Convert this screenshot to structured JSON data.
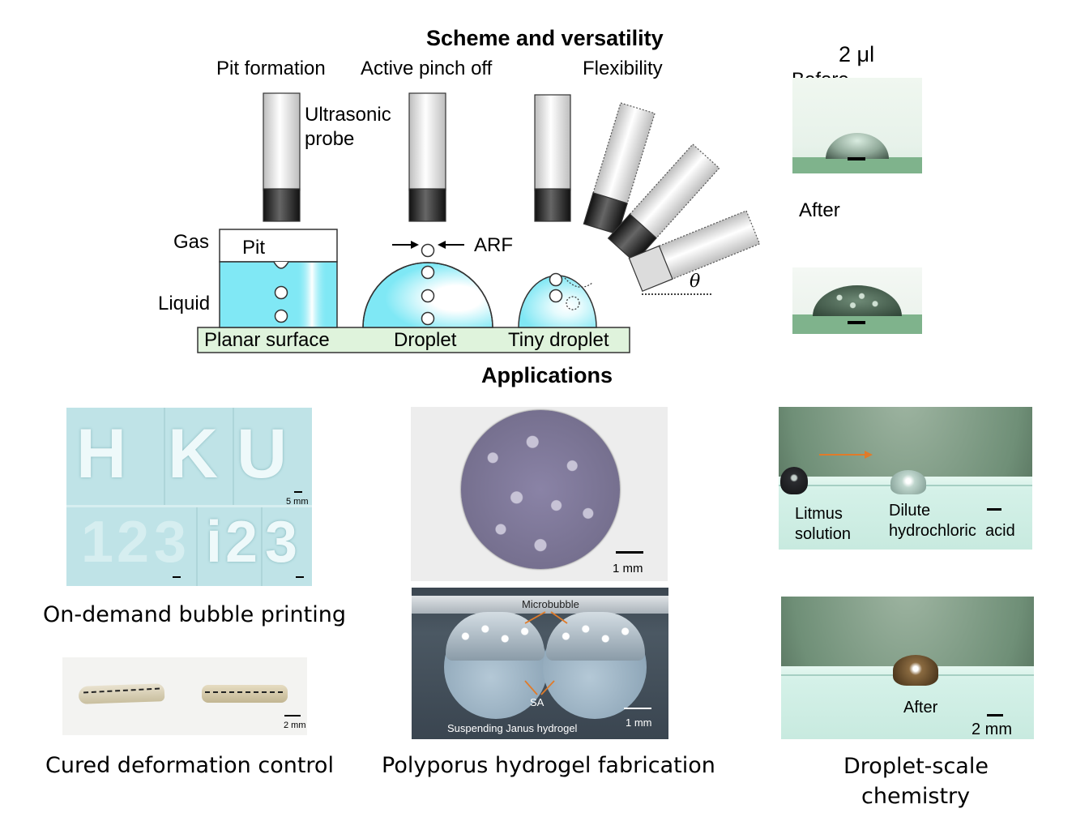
{
  "scheme": {
    "title": "Scheme and versatility",
    "col_pit": "Pit formation",
    "col_pinch": "Active pinch off",
    "col_flex": "Flexibility",
    "probe_line1": "Ultrasonic",
    "probe_line2": "probe",
    "gas": "Gas",
    "liquid": "Liquid",
    "pit": "Pit",
    "arf": "ARF",
    "theta": "θ",
    "planar": "Planar surface",
    "droplet": "Droplet",
    "tiny": "Tiny droplet"
  },
  "contact": {
    "volume": "2 μl",
    "before": "Before",
    "after": "After"
  },
  "applications": {
    "title": "Applications",
    "bubble_printing": {
      "caption": "On-demand bubble printing",
      "scale": "5 mm",
      "letters": [
        "H",
        "K",
        "U",
        "1",
        "2",
        "3",
        "i",
        "2",
        "3"
      ]
    },
    "deformation": {
      "caption": "Cured deformation control",
      "scale": "2 mm"
    },
    "hydrogel": {
      "caption": "Polyporus hydrogel fabrication",
      "scale_top": "1 mm",
      "microbubble": "Microbubble",
      "sa": "SA",
      "scale_bottom": "1 mm",
      "janus": "Suspending Janus hydrogel"
    },
    "chemistry": {
      "caption_line1": "Droplet-scale",
      "caption_line2": "chemistry",
      "litmus1": "Litmus",
      "litmus2": "solution",
      "dilute1": "Dilute",
      "dilute2": "hydrochloric",
      "dilute3": "acid",
      "after": "After",
      "scale": "2 mm"
    }
  }
}
